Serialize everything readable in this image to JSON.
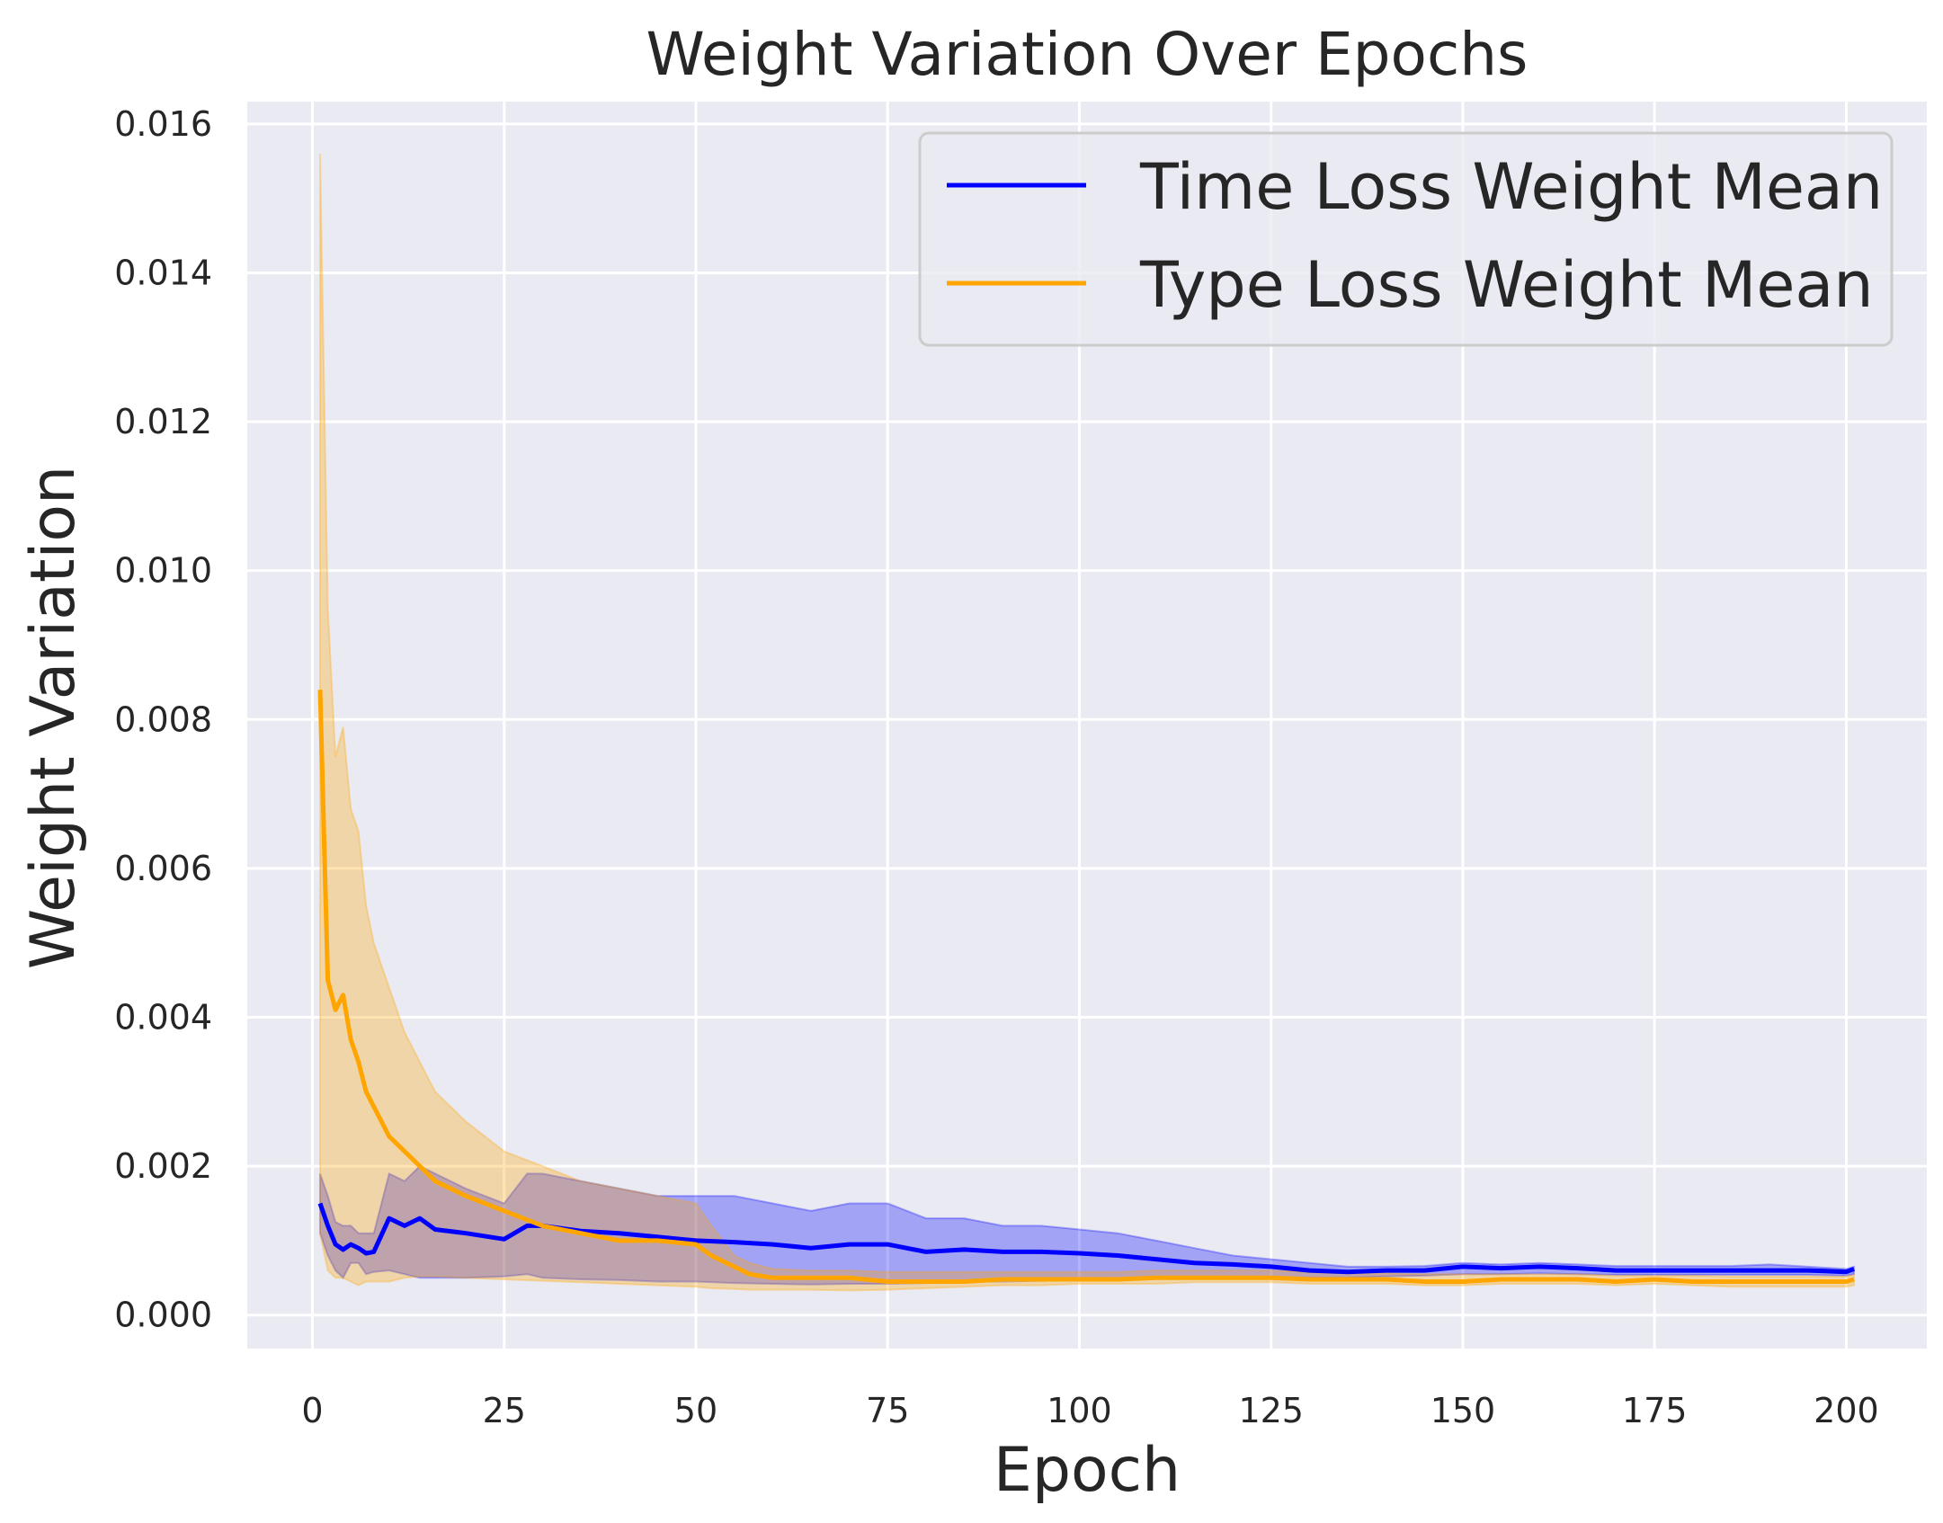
{
  "chart_data": {
    "type": "line",
    "title": "Weight Variation Over Epochs",
    "xlabel": "Epoch",
    "ylabel": "Weight Variation",
    "xlim": [
      -8.5,
      210.5
    ],
    "ylim": [
      -0.00045,
      0.0163
    ],
    "xticks": [
      0,
      25,
      50,
      75,
      100,
      125,
      150,
      175,
      200
    ],
    "xtick_labels": [
      "0",
      "25",
      "50",
      "75",
      "100",
      "125",
      "150",
      "175",
      "200"
    ],
    "yticks": [
      0.0,
      0.002,
      0.004,
      0.006,
      0.008,
      0.01,
      0.012,
      0.014,
      0.016
    ],
    "ytick_labels": [
      "0.000",
      "0.002",
      "0.004",
      "0.006",
      "0.008",
      "0.010",
      "0.012",
      "0.014",
      "0.016"
    ],
    "grid": true,
    "legend_position": "top-right",
    "series": [
      {
        "name": "Time Loss Weight Mean",
        "color": "#0000ff",
        "band_color": "#0000ff",
        "x": [
          1,
          2,
          3,
          4,
          5,
          6,
          7,
          8,
          10,
          12,
          14,
          16,
          20,
          25,
          28,
          30,
          35,
          40,
          45,
          50,
          55,
          60,
          65,
          70,
          75,
          80,
          85,
          90,
          95,
          100,
          105,
          110,
          115,
          120,
          125,
          130,
          135,
          140,
          145,
          150,
          155,
          160,
          165,
          170,
          175,
          180,
          185,
          190,
          195,
          200,
          201
        ],
        "mean": [
          0.0015,
          0.0012,
          0.00095,
          0.00088,
          0.00095,
          0.0009,
          0.00083,
          0.00085,
          0.0013,
          0.0012,
          0.0013,
          0.00115,
          0.0011,
          0.00102,
          0.0012,
          0.0012,
          0.00113,
          0.0011,
          0.00105,
          0.001,
          0.00098,
          0.00095,
          0.0009,
          0.00095,
          0.00095,
          0.00085,
          0.00088,
          0.00085,
          0.00085,
          0.00083,
          0.0008,
          0.00075,
          0.0007,
          0.00068,
          0.00065,
          0.0006,
          0.00058,
          0.0006,
          0.0006,
          0.00065,
          0.00063,
          0.00065,
          0.00063,
          0.0006,
          0.0006,
          0.0006,
          0.0006,
          0.0006,
          0.0006,
          0.00058,
          0.00062
        ],
        "upper": [
          0.0019,
          0.0016,
          0.00125,
          0.0012,
          0.0012,
          0.0011,
          0.0011,
          0.0011,
          0.0019,
          0.0018,
          0.002,
          0.0019,
          0.0017,
          0.0015,
          0.0019,
          0.0019,
          0.0018,
          0.0017,
          0.0016,
          0.0016,
          0.0016,
          0.0015,
          0.0014,
          0.0015,
          0.0015,
          0.0013,
          0.0013,
          0.0012,
          0.0012,
          0.00115,
          0.0011,
          0.001,
          0.0009,
          0.0008,
          0.00075,
          0.0007,
          0.00065,
          0.00065,
          0.00066,
          0.0007,
          0.00068,
          0.0007,
          0.00068,
          0.00066,
          0.00066,
          0.00066,
          0.00066,
          0.00068,
          0.00065,
          0.00062,
          0.00065
        ],
        "lower": [
          0.0011,
          0.0008,
          0.0006,
          0.0005,
          0.0007,
          0.0007,
          0.00055,
          0.00058,
          0.0006,
          0.00055,
          0.0005,
          0.0005,
          0.0005,
          0.00052,
          0.00055,
          0.0005,
          0.00048,
          0.00047,
          0.00045,
          0.00045,
          0.00043,
          0.00042,
          0.00041,
          0.00042,
          0.00042,
          0.00043,
          0.00045,
          0.00045,
          0.00046,
          0.00047,
          0.00048,
          0.0005,
          0.0005,
          0.0005,
          0.0005,
          0.0005,
          0.0005,
          0.00052,
          0.00053,
          0.00055,
          0.00055,
          0.00056,
          0.00055,
          0.00054,
          0.00054,
          0.00054,
          0.00054,
          0.00054,
          0.00054,
          0.00053,
          0.00055
        ]
      },
      {
        "name": "Type Loss Weight Mean",
        "color": "#ffa500",
        "band_color": "#ffa500",
        "x": [
          1,
          2,
          3,
          4,
          5,
          6,
          7,
          8,
          10,
          12,
          14,
          16,
          20,
          25,
          30,
          35,
          40,
          45,
          50,
          52,
          55,
          57,
          60,
          65,
          70,
          75,
          80,
          85,
          90,
          95,
          100,
          105,
          110,
          115,
          120,
          125,
          130,
          135,
          140,
          145,
          150,
          155,
          160,
          165,
          170,
          175,
          180,
          185,
          190,
          195,
          200,
          201
        ],
        "mean": [
          0.0084,
          0.0045,
          0.0041,
          0.0043,
          0.0037,
          0.0034,
          0.003,
          0.0028,
          0.0024,
          0.0022,
          0.002,
          0.0018,
          0.0016,
          0.0014,
          0.0012,
          0.0011,
          0.001,
          0.001,
          0.00095,
          0.0008,
          0.00065,
          0.00055,
          0.0005,
          0.0005,
          0.0005,
          0.00045,
          0.00045,
          0.00045,
          0.00048,
          0.00048,
          0.00048,
          0.00048,
          0.0005,
          0.0005,
          0.0005,
          0.0005,
          0.00048,
          0.00048,
          0.00048,
          0.00045,
          0.00045,
          0.00048,
          0.00048,
          0.00048,
          0.00045,
          0.00048,
          0.00045,
          0.00045,
          0.00045,
          0.00045,
          0.00045,
          0.00048
        ],
        "upper": [
          0.0156,
          0.0095,
          0.0075,
          0.0079,
          0.0068,
          0.0065,
          0.0055,
          0.005,
          0.0044,
          0.0038,
          0.0034,
          0.003,
          0.0026,
          0.0022,
          0.002,
          0.0018,
          0.0017,
          0.0016,
          0.0015,
          0.0012,
          0.0008,
          0.0007,
          0.00062,
          0.0006,
          0.0006,
          0.00058,
          0.00058,
          0.00058,
          0.00058,
          0.00058,
          0.00058,
          0.00058,
          0.0006,
          0.0006,
          0.0006,
          0.0006,
          0.00058,
          0.00056,
          0.00056,
          0.00055,
          0.00055,
          0.00055,
          0.00055,
          0.00055,
          0.00053,
          0.00053,
          0.00053,
          0.00052,
          0.00052,
          0.00052,
          0.00052,
          0.00054
        ],
        "lower": [
          0.0011,
          0.0006,
          0.0005,
          0.0005,
          0.00045,
          0.0004,
          0.00045,
          0.00045,
          0.00045,
          0.0005,
          0.00052,
          0.00052,
          0.0005,
          0.00048,
          0.00046,
          0.00044,
          0.00042,
          0.0004,
          0.00038,
          0.00036,
          0.00035,
          0.00034,
          0.00034,
          0.00034,
          0.00033,
          0.00034,
          0.00036,
          0.00038,
          0.0004,
          0.0004,
          0.00042,
          0.00042,
          0.00042,
          0.00044,
          0.00044,
          0.00044,
          0.00042,
          0.00042,
          0.00042,
          0.0004,
          0.0004,
          0.00042,
          0.00042,
          0.00042,
          0.0004,
          0.00042,
          0.0004,
          0.00038,
          0.00038,
          0.00038,
          0.00038,
          0.0004
        ]
      }
    ]
  }
}
